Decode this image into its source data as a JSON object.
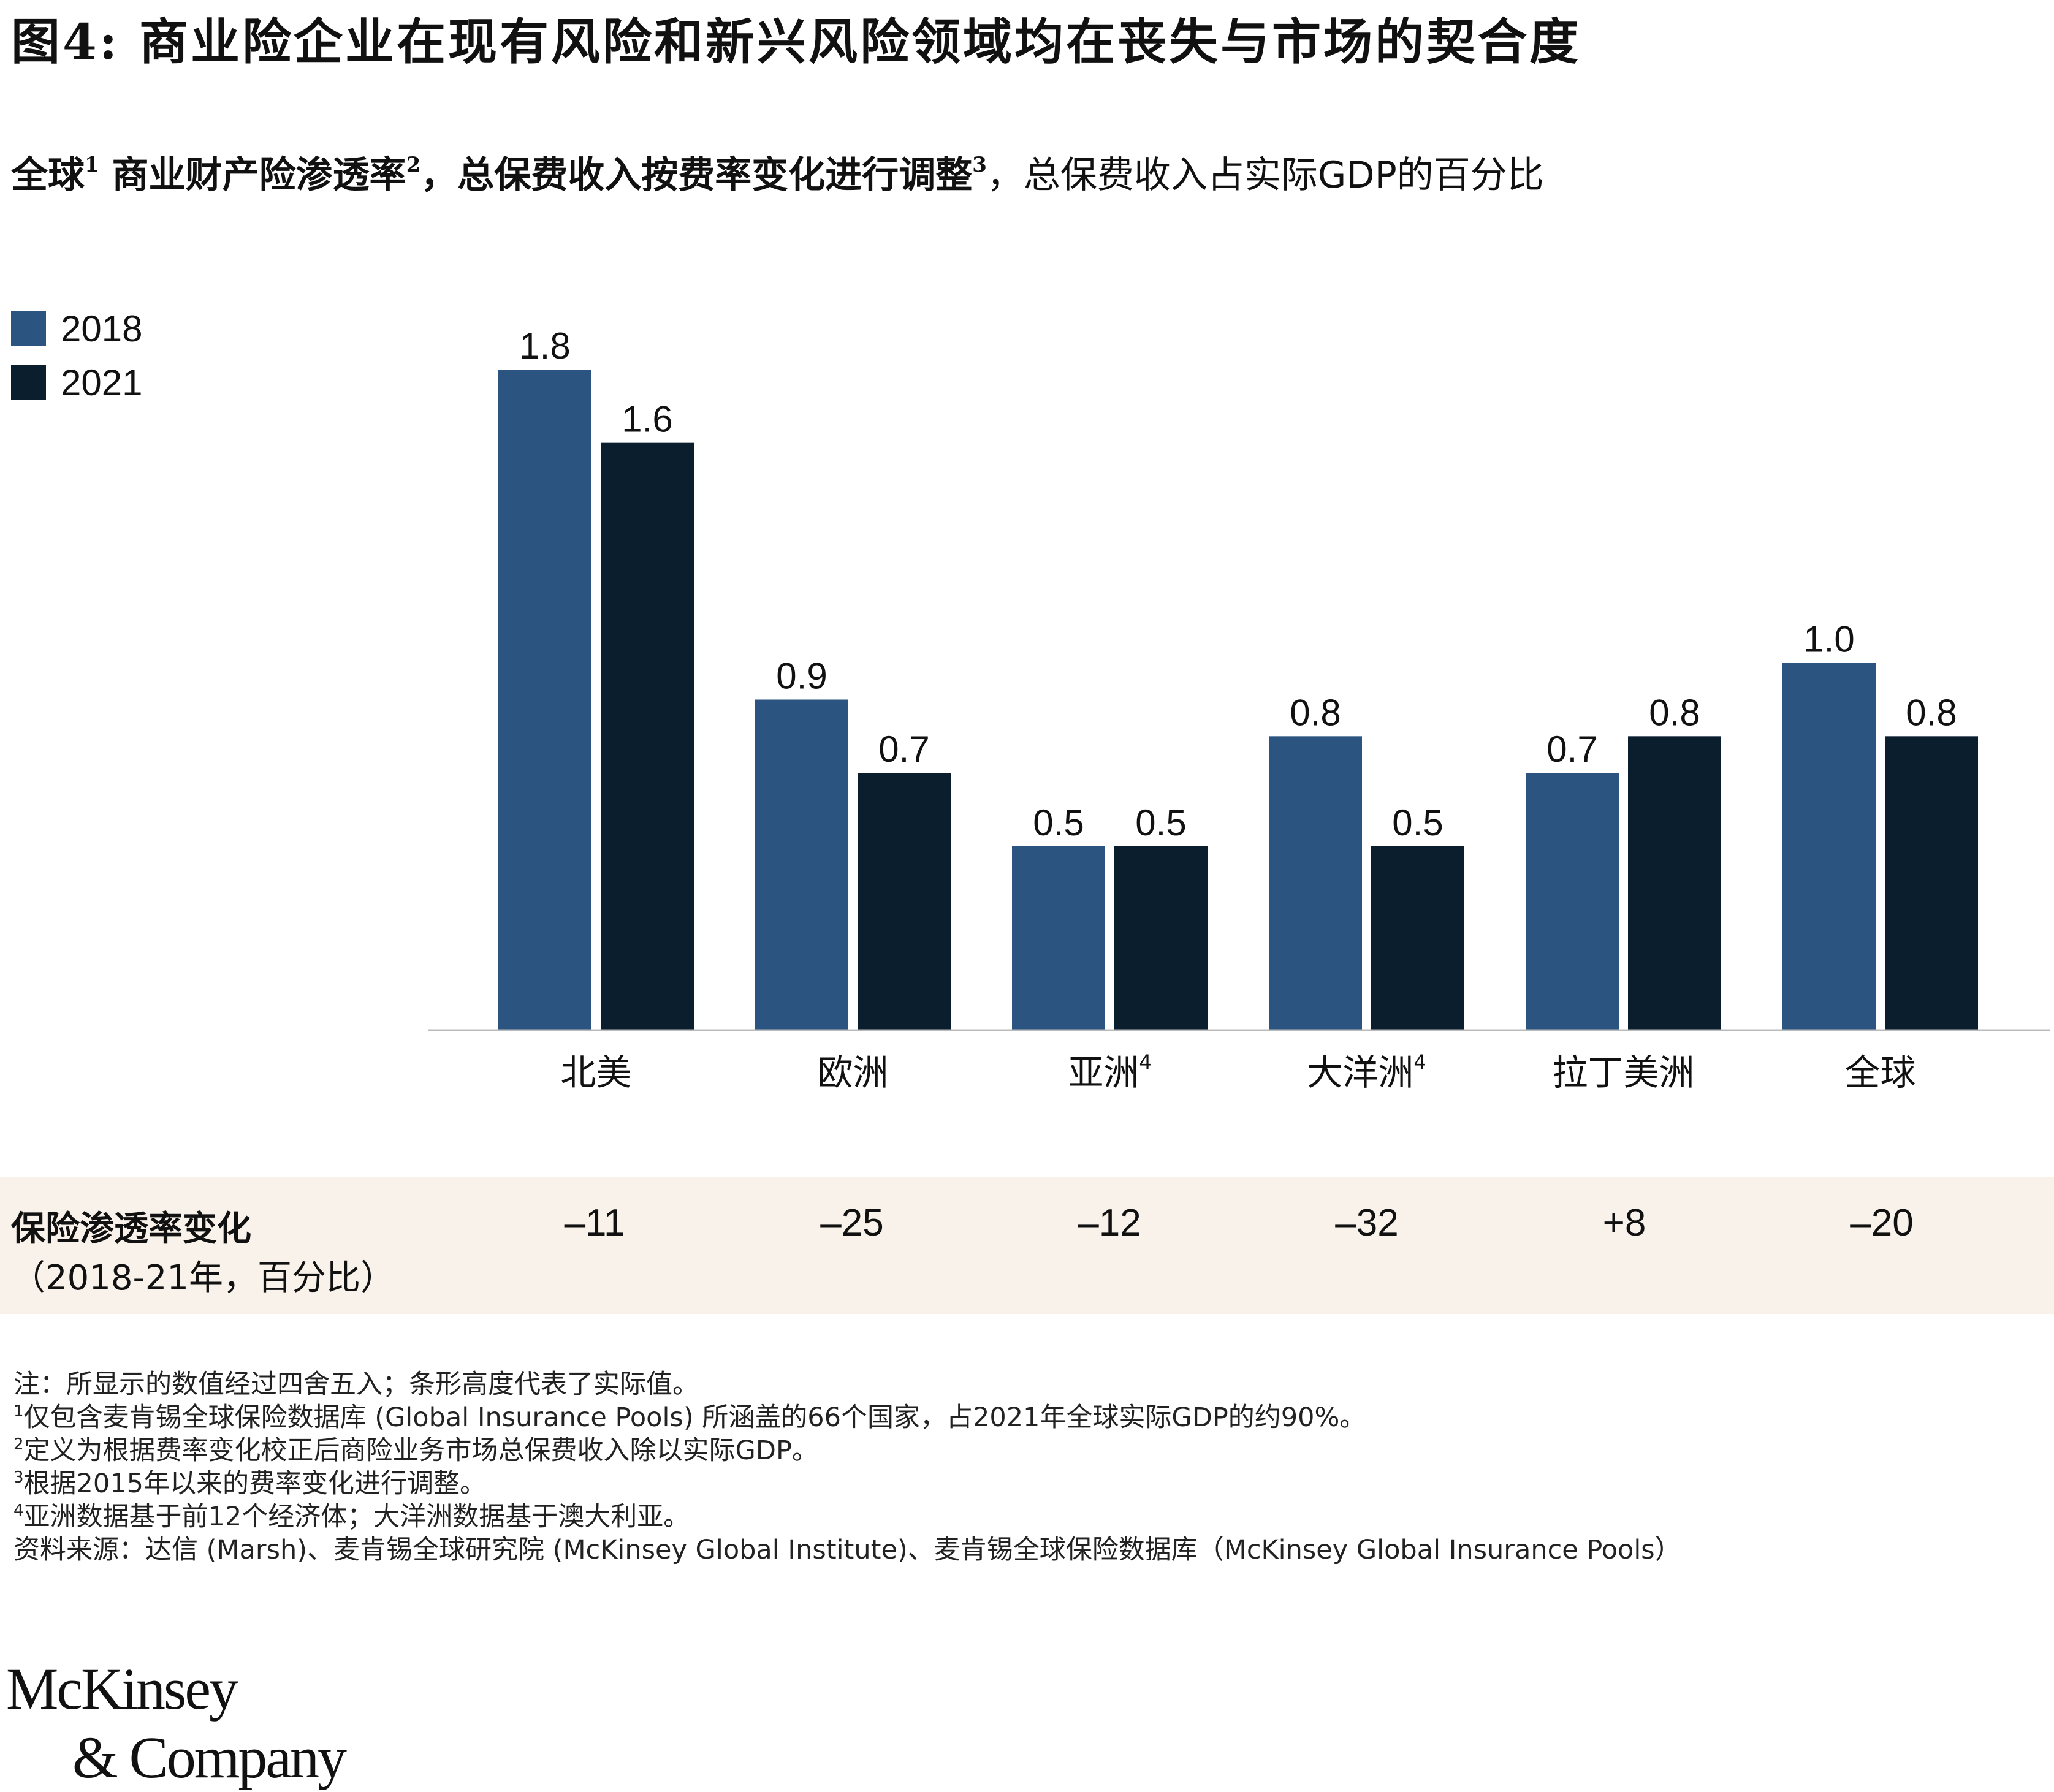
{
  "title": "图4: 商业险企业在现有风险和新兴风险领域均在丧失与市场的契合度",
  "subtitle": {
    "part1": "全球",
    "sup1": "1",
    "part2": " 商业财产险渗透率",
    "sup2": "2",
    "part3": "，总保费收入按费率变化进行调整",
    "sup3": "3",
    "part4": "，总保费收入占实际GDP的百分比"
  },
  "colors": {
    "s2018": "#2b5480",
    "s2021": "#0b1e2e",
    "band": "#f9f2ea",
    "axis": "#bbbbbb"
  },
  "chart_data": {
    "type": "bar",
    "categories": [
      "北美",
      "欧洲",
      "亚洲",
      "大洋洲",
      "拉丁美洲",
      "全球"
    ],
    "category_sups": [
      "",
      "",
      "4",
      "4",
      "",
      ""
    ],
    "series": [
      {
        "name": "2018",
        "values": [
          1.8,
          0.9,
          0.5,
          0.8,
          0.7,
          1.0
        ],
        "labels": [
          "1.8",
          "0.9",
          "0.5",
          "0.8",
          "0.7",
          "1.0"
        ]
      },
      {
        "name": "2021",
        "values": [
          1.6,
          0.7,
          0.5,
          0.5,
          0.8,
          0.8
        ],
        "labels": [
          "1.6",
          "0.7",
          "0.5",
          "0.5",
          "0.8",
          "0.8"
        ]
      }
    ],
    "legend_position": "top-left",
    "grid": false,
    "ylim": [
      0,
      1.9
    ]
  },
  "change": {
    "title": "保险渗透率变化",
    "subtitle": "（2018-21年，百分比）",
    "values": [
      "–11",
      "–25",
      "–12",
      "–32",
      "+8",
      "–20"
    ]
  },
  "notes": [
    {
      "sup": "",
      "text": "注：所显示的数值经过四舍五入；条形高度代表了实际值。"
    },
    {
      "sup": "1",
      "text": "仅包含麦肯锡全球保险数据库 (Global Insurance Pools) 所涵盖的66个国家，占2021年全球实际GDP的约90%。"
    },
    {
      "sup": "2",
      "text": "定义为根据费率变化校正后商险业务市场总保费收入除以实际GDP。"
    },
    {
      "sup": "3",
      "text": "根据2015年以来的费率变化进行调整。"
    },
    {
      "sup": "4",
      "text": "亚洲数据基于前12个经济体；大洋洲数据基于澳大利亚。"
    },
    {
      "sup": "",
      "text": "资料来源：达信 (Marsh)、麦肯锡全球研究院 (McKinsey Global Institute)、麦肯锡全球保险数据库（McKinsey Global Insurance Pools）"
    }
  ],
  "logo": {
    "line1": "McKinsey",
    "line2": "& Company"
  }
}
